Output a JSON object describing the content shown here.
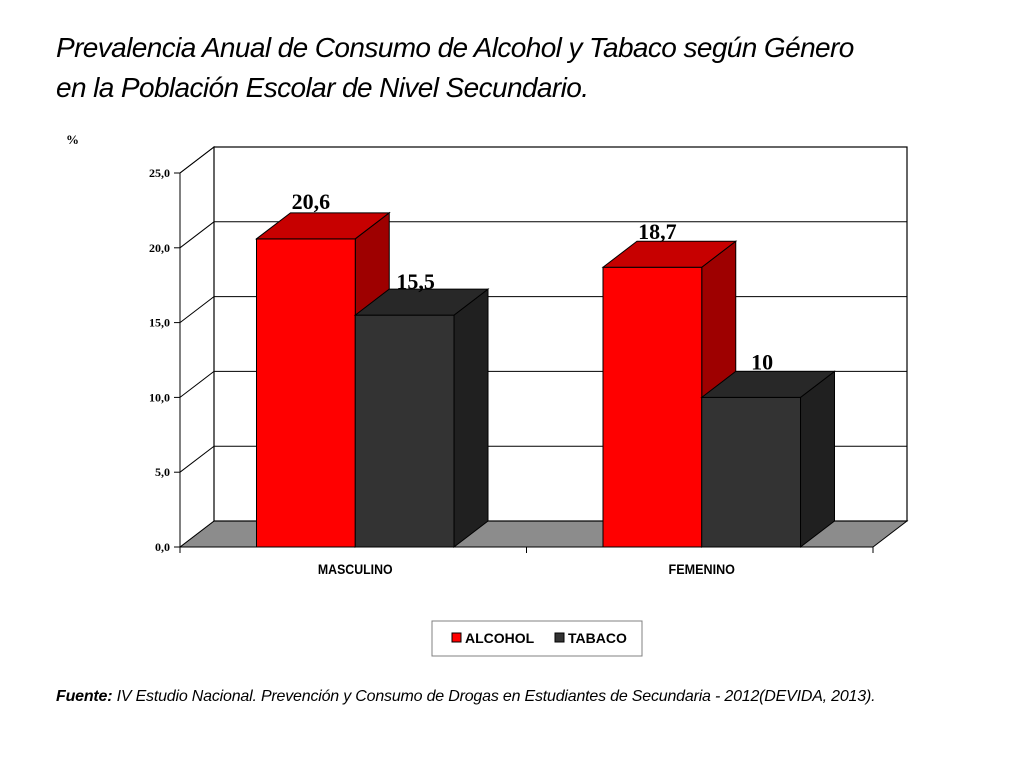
{
  "slide": {
    "title_line1": "Prevalencia Anual de Consumo de Alcohol y Tabaco según Género",
    "title_line2": "en la Población Escolar  de Nivel Secundario.",
    "source_label": "Fuente:",
    "source_text": " IV Estudio Nacional. Prevención y Consumo de Drogas en Estudiantes de Secundaria - 2012(DEVIDA, 2013)."
  },
  "chart_data": {
    "type": "bar",
    "style": "3d-clustered",
    "title": "",
    "xlabel": "",
    "ylabel": "%",
    "ylim": [
      0,
      25
    ],
    "yticks": [
      "0,0",
      "5,0",
      "10,0",
      "15,0",
      "20,0",
      "25,0"
    ],
    "ytick_values": [
      0,
      5,
      10,
      15,
      20,
      25
    ],
    "grid": true,
    "legend_position": "bottom",
    "categories": [
      "MASCULINO",
      "FEMENINO"
    ],
    "series": [
      {
        "name": "ALCOHOL",
        "values": [
          20.6,
          18.7
        ],
        "labels": [
          "20,6",
          "18,7"
        ],
        "color": "#ff0000"
      },
      {
        "name": "TABACO",
        "values": [
          15.5,
          10
        ],
        "labels": [
          "15,5",
          "10"
        ],
        "color": "#333333"
      }
    ]
  }
}
